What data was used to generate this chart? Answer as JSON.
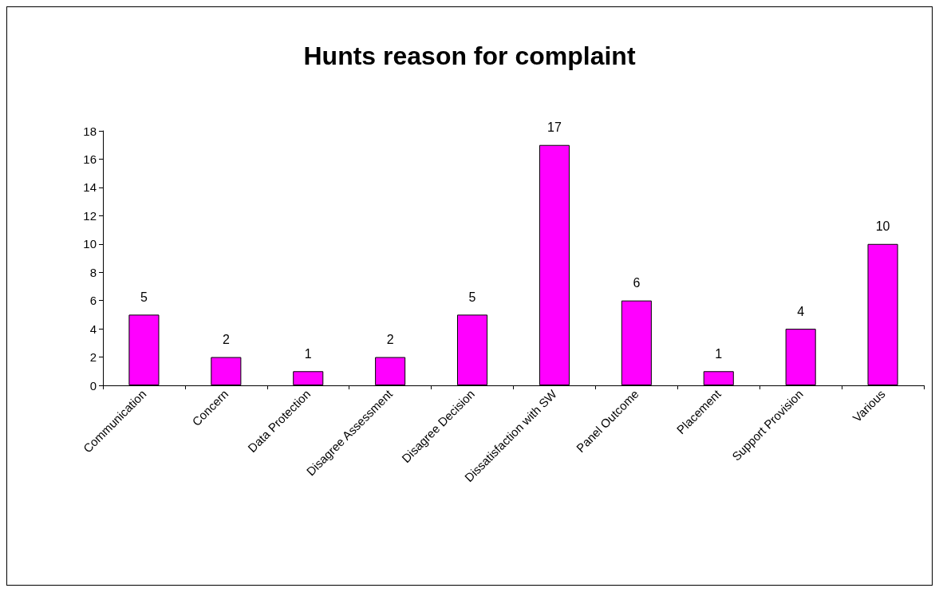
{
  "chart_data": {
    "type": "bar",
    "title": "Hunts reason for complaint",
    "categories": [
      "Communication",
      "Concern",
      "Data Protection",
      "Disagree Assessment",
      "Disagree Decision",
      "Dissatisfaction with SW",
      "Panel Outcome",
      "Placement",
      "Support Provision",
      "Various"
    ],
    "values": [
      5,
      2,
      1,
      2,
      5,
      17,
      6,
      1,
      4,
      10
    ],
    "color": "#ff00ff",
    "ylim": [
      0,
      18
    ],
    "yticks": [
      0,
      2,
      4,
      6,
      8,
      10,
      12,
      14,
      16,
      18
    ],
    "grid": false,
    "data_labels": true
  }
}
